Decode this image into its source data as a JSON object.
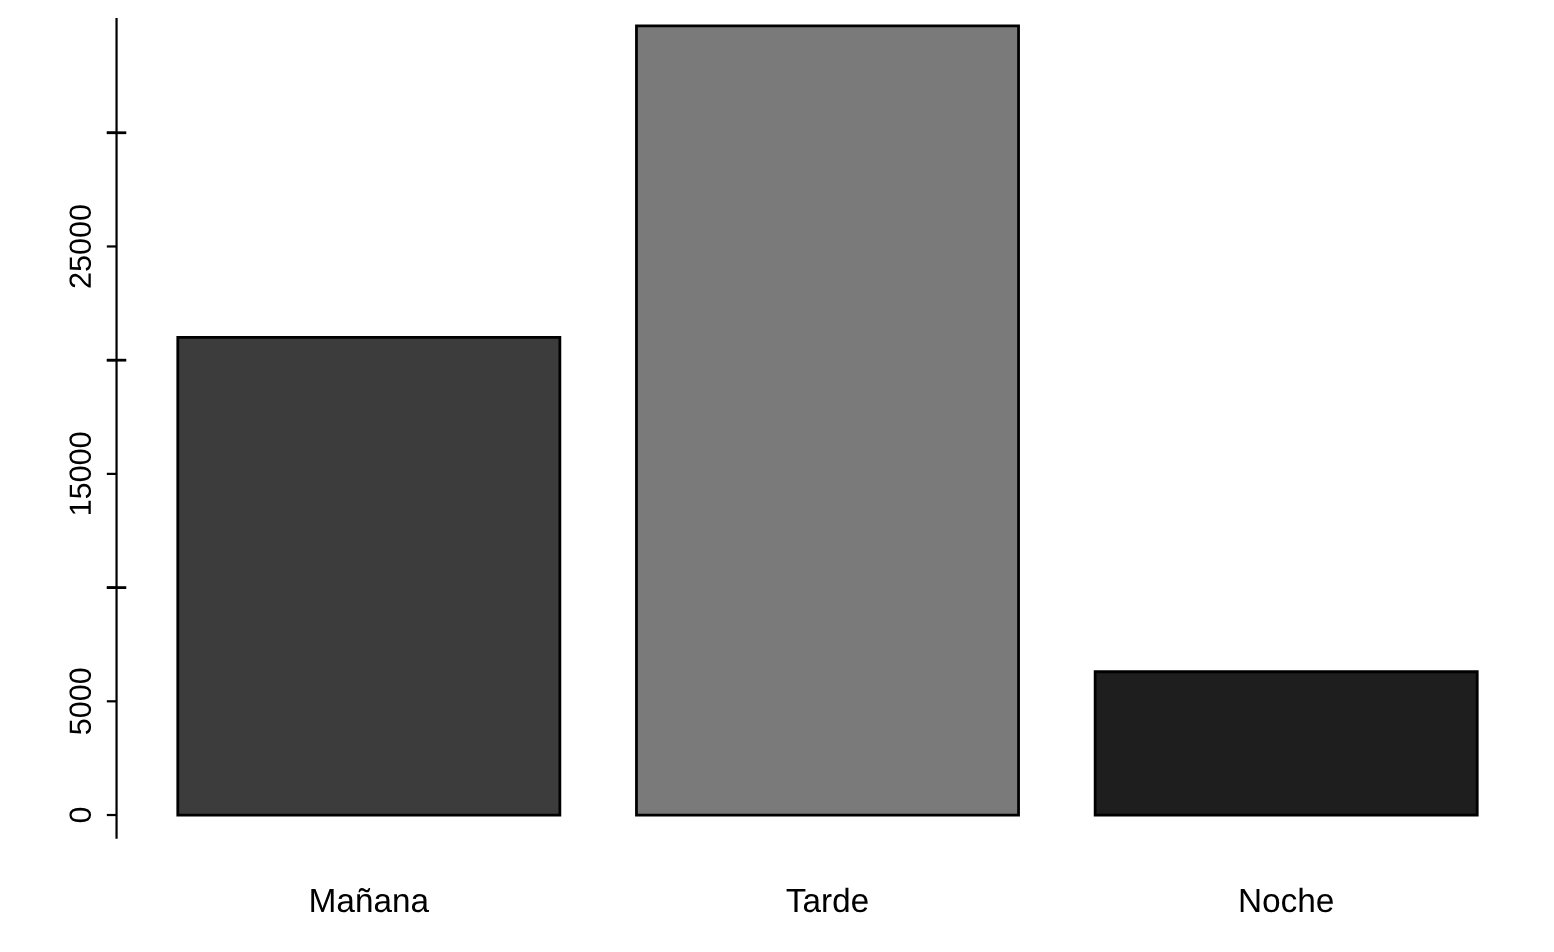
{
  "chart_data": {
    "type": "bar",
    "categories": [
      "Mañana",
      "Tarde",
      "Noche"
    ],
    "values": [
      21000,
      34700,
      6300
    ],
    "colors": [
      "#3c3c3c",
      "#7a7a7a",
      "#1e1e1e"
    ],
    "ylim": [
      -1000,
      35000
    ],
    "yticks": [
      0,
      5000,
      {
        "value": 10000,
        "label": null
      },
      15000,
      {
        "value": 20000,
        "label": null
      },
      25000,
      {
        "value": 30000,
        "label": null
      }
    ],
    "grid": false
  }
}
